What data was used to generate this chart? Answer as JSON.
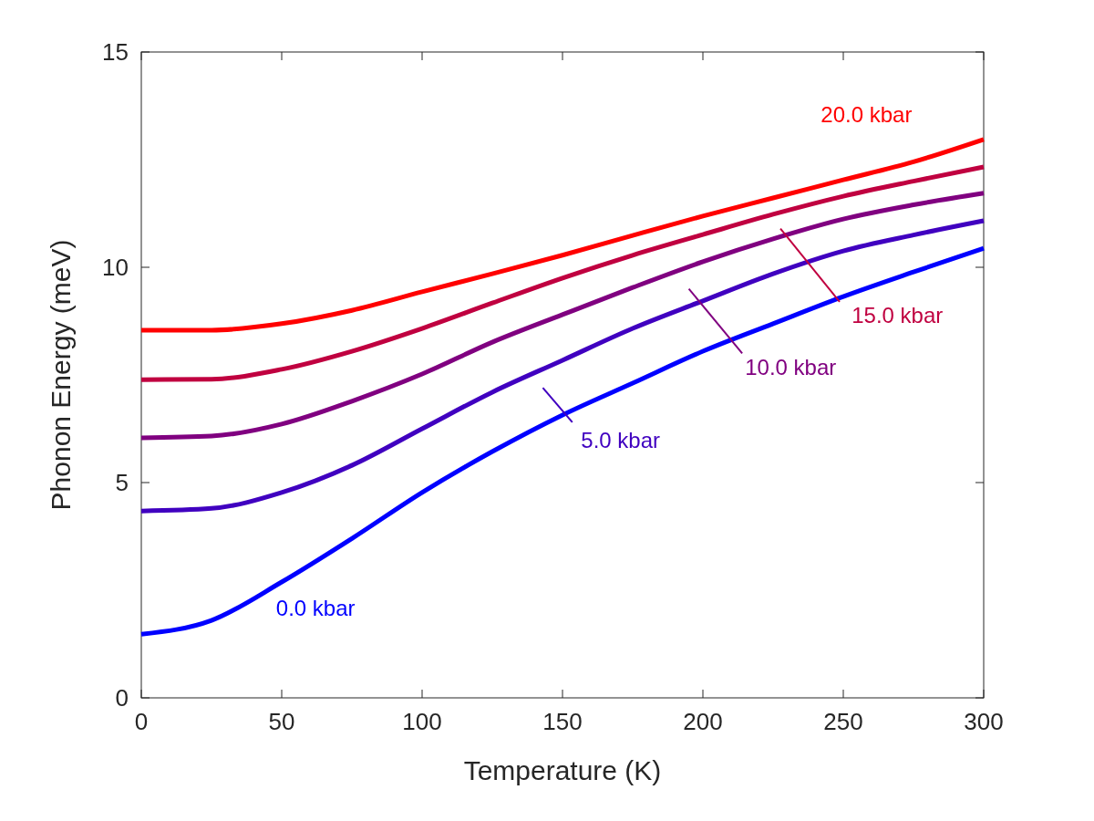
{
  "chart_data": {
    "type": "line",
    "xlabel": "Temperature (K)",
    "ylabel": "Phonon Energy (meV)",
    "x": [
      0,
      25,
      50,
      75,
      100,
      125,
      150,
      175,
      200,
      225,
      250,
      275,
      300
    ],
    "xlim": [
      0,
      300
    ],
    "xticks": [
      0,
      50,
      100,
      150,
      200,
      250,
      300
    ],
    "ylim": [
      0,
      15
    ],
    "yticks": [
      0,
      5,
      10,
      15
    ],
    "grid": false,
    "legend": false,
    "marker": "none",
    "line_style": "solid",
    "series": [
      {
        "name": "0.0 kbar",
        "color": "#0000ff",
        "values": [
          1.48,
          1.8,
          2.69,
          3.7,
          4.77,
          5.72,
          6.57,
          7.31,
          8.05,
          8.69,
          9.32,
          9.89,
          10.44
        ]
      },
      {
        "name": "5.0 kbar",
        "color": "#4000c0",
        "values": [
          4.34,
          4.4,
          4.77,
          5.4,
          6.25,
          7.1,
          7.84,
          8.58,
          9.22,
          9.85,
          10.38,
          10.75,
          11.08
        ]
      },
      {
        "name": "10.0 kbar",
        "color": "#800080",
        "values": [
          6.04,
          6.08,
          6.36,
          6.89,
          7.52,
          8.26,
          8.9,
          9.53,
          10.13,
          10.66,
          11.12,
          11.45,
          11.72
        ]
      },
      {
        "name": "15.0 kbar",
        "color": "#c00040",
        "values": [
          7.39,
          7.4,
          7.63,
          8.05,
          8.58,
          9.17,
          9.75,
          10.28,
          10.76,
          11.23,
          11.65,
          12.0,
          12.33
        ]
      },
      {
        "name": "20.0 kbar",
        "color": "#ff0000",
        "values": [
          8.54,
          8.54,
          8.69,
          9.0,
          9.43,
          9.85,
          10.28,
          10.74,
          11.19,
          11.61,
          12.03,
          12.45,
          12.97
        ]
      }
    ]
  }
}
